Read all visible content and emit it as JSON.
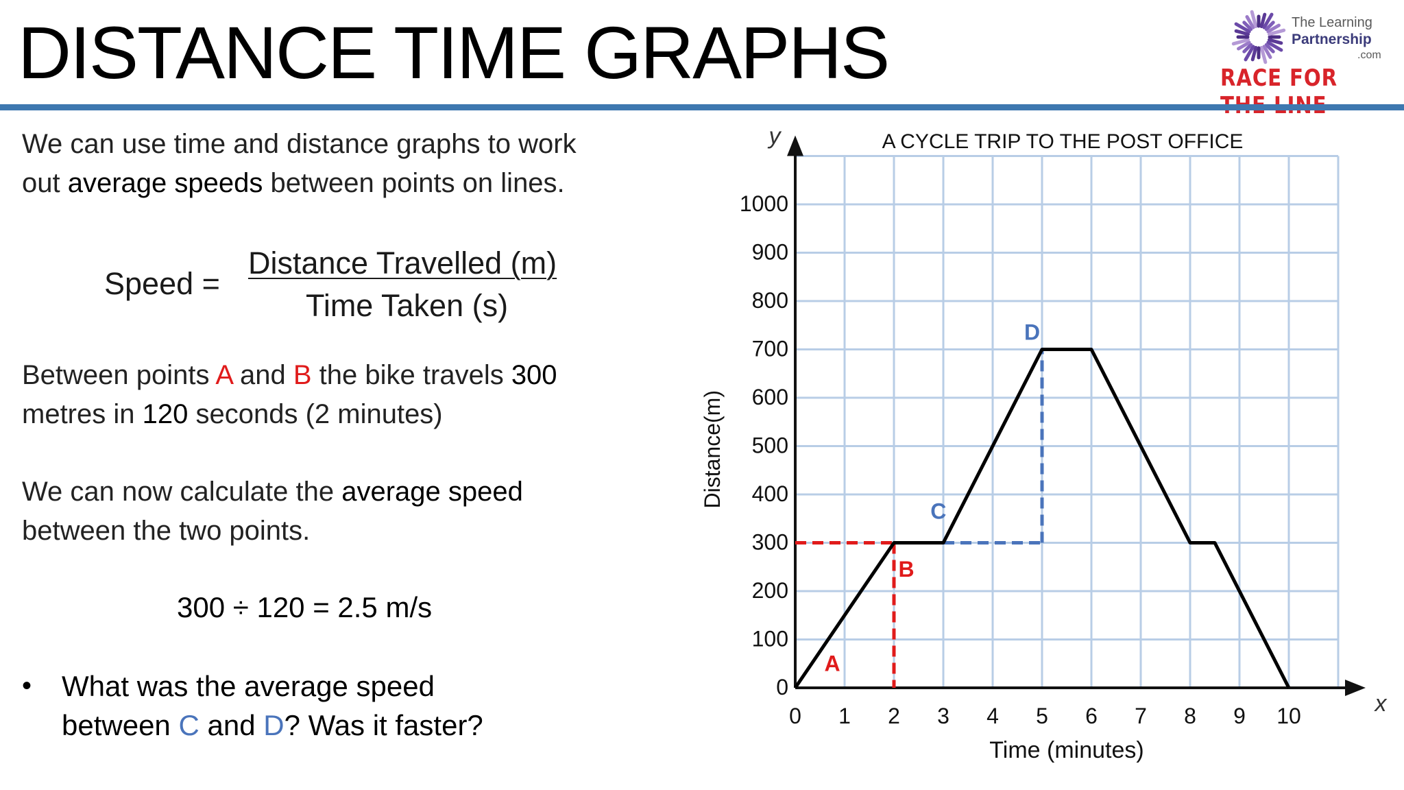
{
  "header": {
    "title": "DISTANCE TIME GRAPHS",
    "logo": {
      "line1": "The Learning",
      "line2": "Partnership",
      "line3": ".com",
      "line4": "RACE FOR THE LINE"
    },
    "accent_color": "#3e78b0"
  },
  "intro": {
    "p1": "We can use time and distance graphs to work",
    "p2_pre": "out ",
    "p2_bold": "average speeds",
    "p2_post": " between points on lines."
  },
  "formula": {
    "label": "Speed =",
    "numerator": "Distance Travelled (m)",
    "denominator": "Time Taken (s)"
  },
  "example": {
    "l1_a": "Between points ",
    "l1_A": "A",
    "l1_b": " and ",
    "l1_B": "B",
    "l1_c": " the bike travels ",
    "l1_num": "300",
    "l2_a": "metres in ",
    "l2_num": "120",
    "l2_b": " seconds (2 minutes)"
  },
  "calc_intro": {
    "l1_a": "We can now calculate the ",
    "l1_bold": "average speed",
    "l2": "between the two points."
  },
  "calculation": "300 ÷ 120 = 2.5 m/s",
  "question": {
    "bullet": "•",
    "l1": "What was the average speed",
    "l2_a": "between ",
    "l2_C": "C",
    "l2_b": " and ",
    "l2_D": "D",
    "l2_c": "?   Was it faster?"
  },
  "chart_data": {
    "type": "line",
    "title": "A CYCLE TRIP TO THE POST OFFICE",
    "xlabel": "Time (minutes)",
    "ylabel": "Distance(m)",
    "x_axis_letter": "x",
    "y_axis_letter": "y",
    "xlim": [
      0,
      11
    ],
    "ylim": [
      0,
      1100
    ],
    "x_ticks": [
      0,
      1,
      2,
      3,
      4,
      5,
      6,
      7,
      8,
      9,
      10
    ],
    "y_ticks": [
      0,
      100,
      200,
      300,
      400,
      500,
      600,
      700,
      800,
      900,
      1000
    ],
    "grid": true,
    "series": [
      {
        "color": "#000000",
        "points": [
          [
            0,
            0
          ],
          [
            2,
            300
          ],
          [
            3,
            300
          ],
          [
            5,
            700
          ],
          [
            6,
            700
          ],
          [
            8,
            300
          ],
          [
            8.5,
            300
          ],
          [
            10,
            0
          ]
        ]
      }
    ],
    "guides": [
      {
        "color": "#e01b1b",
        "style": "dashed",
        "points": [
          [
            0,
            300
          ],
          [
            2,
            300
          ]
        ]
      },
      {
        "color": "#e01b1b",
        "style": "dashed",
        "points": [
          [
            2,
            300
          ],
          [
            2,
            0
          ]
        ]
      },
      {
        "color": "#4a74bb",
        "style": "dashed",
        "points": [
          [
            3,
            300
          ],
          [
            5,
            300
          ]
        ]
      },
      {
        "color": "#4a74bb",
        "style": "dashed",
        "points": [
          [
            5,
            300
          ],
          [
            5,
            700
          ]
        ]
      }
    ],
    "point_labels": [
      {
        "text": "A",
        "x": 0.75,
        "y": 35,
        "color": "#e01b1b"
      },
      {
        "text": "B",
        "x": 2.25,
        "y": 230,
        "color": "#e01b1b"
      },
      {
        "text": "C",
        "x": 2.9,
        "y": 350,
        "color": "#4a74bb"
      },
      {
        "text": "D",
        "x": 4.8,
        "y": 720,
        "color": "#4a74bb"
      }
    ],
    "grid_color": "#b8cde6"
  }
}
